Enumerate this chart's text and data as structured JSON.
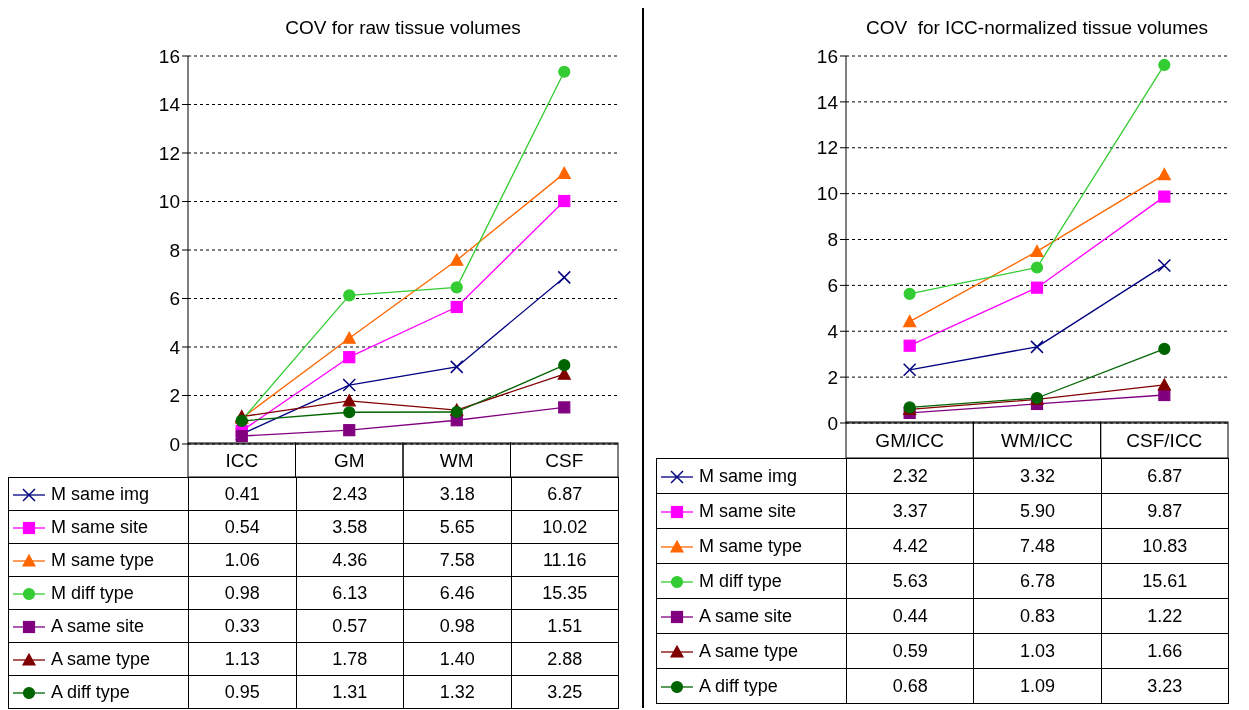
{
  "chart_data": [
    {
      "type": "line",
      "legend": "bottom left",
      "title": "COV for raw tissue volumes",
      "categories": [
        "ICC",
        "GM",
        "WM",
        "CSF"
      ],
      "ylim": [
        0,
        16
      ],
      "yticks": [
        0,
        2,
        4,
        6,
        8,
        10,
        12,
        14,
        16
      ],
      "grid": "y",
      "line_style": "solid",
      "series": [
        {
          "name": "M same img",
          "color": "#000080",
          "marker": "cross",
          "values": [
            0.41,
            2.43,
            3.18,
            6.87
          ],
          "value_labels": [
            "0.41",
            "2.43",
            "3.18",
            "6.87"
          ]
        },
        {
          "name": "M same site",
          "color": "#ff00ff",
          "marker": "square",
          "values": [
            0.54,
            3.58,
            5.65,
            10.02
          ],
          "value_labels": [
            "0.54",
            "3.58",
            "5.65",
            "10.02"
          ]
        },
        {
          "name": "M same type",
          "color": "#ff6600",
          "marker": "triangle",
          "values": [
            1.06,
            4.36,
            7.58,
            11.16
          ],
          "value_labels": [
            "1.06",
            "4.36",
            "7.58",
            "11.16"
          ]
        },
        {
          "name": "M diff type",
          "color": "#33cc33",
          "marker": "circle",
          "values": [
            0.98,
            6.13,
            6.46,
            15.35
          ],
          "value_labels": [
            "0.98",
            "6.13",
            "6.46",
            "15.35"
          ]
        },
        {
          "name": "A same site",
          "color": "#800080",
          "marker": "square",
          "values": [
            0.33,
            0.57,
            0.98,
            1.51
          ],
          "value_labels": [
            "0.33",
            "0.57",
            "0.98",
            "1.51"
          ]
        },
        {
          "name": "A same type",
          "color": "#800000",
          "marker": "triangle",
          "values": [
            1.13,
            1.78,
            1.4,
            2.88
          ],
          "value_labels": [
            "1.13",
            "1.78",
            "1.40",
            "2.88"
          ]
        },
        {
          "name": "A diff type",
          "color": "#006400",
          "marker": "circle",
          "values": [
            0.95,
            1.31,
            1.32,
            3.25
          ],
          "value_labels": [
            "0.95",
            "1.31",
            "1.32",
            "3.25"
          ]
        }
      ]
    },
    {
      "type": "line",
      "legend": "bottom left",
      "title": "COV  for ICC-normalized tissue volumes",
      "categories": [
        "GM/ICC",
        "WM/ICC",
        "CSF/ICC"
      ],
      "ylim": [
        0,
        16
      ],
      "yticks": [
        0,
        2,
        4,
        6,
        8,
        10,
        12,
        14,
        16
      ],
      "grid": "y",
      "line_style": "solid",
      "series": [
        {
          "name": "M same img",
          "color": "#000080",
          "marker": "cross",
          "values": [
            2.32,
            3.32,
            6.87
          ],
          "value_labels": [
            "2.32",
            "3.32",
            "6.87"
          ]
        },
        {
          "name": "M same site",
          "color": "#ff00ff",
          "marker": "square",
          "values": [
            3.37,
            5.9,
            9.87
          ],
          "value_labels": [
            "3.37",
            "5.90",
            "9.87"
          ]
        },
        {
          "name": "M same type",
          "color": "#ff6600",
          "marker": "triangle",
          "values": [
            4.42,
            7.48,
            10.83
          ],
          "value_labels": [
            "4.42",
            "7.48",
            "10.83"
          ]
        },
        {
          "name": "M diff type",
          "color": "#33cc33",
          "marker": "circle",
          "values": [
            5.63,
            6.78,
            15.61
          ],
          "value_labels": [
            "5.63",
            "6.78",
            "15.61"
          ]
        },
        {
          "name": "A same site",
          "color": "#800080",
          "marker": "square",
          "values": [
            0.44,
            0.83,
            1.22
          ],
          "value_labels": [
            "0.44",
            "0.83",
            "1.22"
          ]
        },
        {
          "name": "A same type",
          "color": "#800000",
          "marker": "triangle",
          "values": [
            0.59,
            1.03,
            1.66
          ],
          "value_labels": [
            "0.59",
            "1.03",
            "1.66"
          ]
        },
        {
          "name": "A diff type",
          "color": "#006400",
          "marker": "circle",
          "values": [
            0.68,
            1.09,
            3.23
          ],
          "value_labels": [
            "0.68",
            "1.09",
            "3.23"
          ]
        }
      ]
    }
  ]
}
